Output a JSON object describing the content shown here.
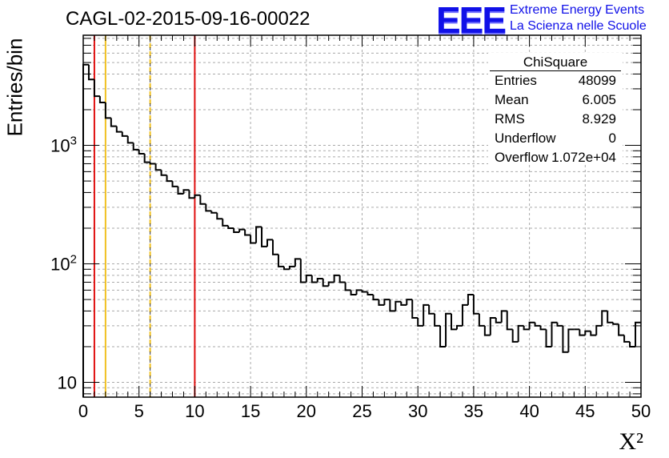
{
  "header": {
    "title": "CAGL-02-2015-09-16-00022",
    "logo": "EEE",
    "logo_line1": "Extreme Energy Events",
    "logo_line2": "La Scienza nelle Scuole"
  },
  "stats": {
    "name": "ChiSquare",
    "rows": [
      {
        "key": "Entries",
        "value": "48099"
      },
      {
        "key": "Mean",
        "value": "6.005"
      },
      {
        "key": "RMS",
        "value": "8.929"
      },
      {
        "key": "Underflow",
        "value": "0"
      },
      {
        "key": "Overflow",
        "value": "1.072e+04"
      }
    ]
  },
  "colors": {
    "histogram": "#000000",
    "red_line": "#e01010",
    "yellow_line": "#f0c020",
    "logo": "#1010e8"
  },
  "chart_data": {
    "type": "histogram",
    "xlabel": "X²",
    "ylabel": "Entries/bin",
    "xlim": [
      0,
      50
    ],
    "ylim": [
      7.5,
      8500
    ],
    "yscale": "log",
    "grid": true,
    "x_ticks": [
      0,
      5,
      10,
      15,
      20,
      25,
      30,
      35,
      40,
      45,
      50
    ],
    "y_ticks": [
      {
        "value": 10,
        "base": "10",
        "exp": ""
      },
      {
        "value": 100,
        "base": "10",
        "exp": "2"
      },
      {
        "value": 1000,
        "base": "10",
        "exp": "3"
      }
    ],
    "bin_width": 0.5,
    "values": [
      4800,
      3600,
      2600,
      2300,
      1700,
      1450,
      1300,
      1200,
      1050,
      920,
      850,
      720,
      700,
      620,
      560,
      500,
      450,
      390,
      420,
      360,
      380,
      320,
      280,
      270,
      240,
      210,
      200,
      185,
      195,
      175,
      150,
      205,
      140,
      160,
      120,
      95,
      90,
      95,
      110,
      70,
      80,
      70,
      75,
      65,
      70,
      80,
      70,
      60,
      55,
      60,
      58,
      55,
      50,
      45,
      50,
      40,
      48,
      45,
      50,
      35,
      30,
      45,
      38,
      30,
      20,
      38,
      28,
      30,
      45,
      55,
      38,
      30,
      25,
      35,
      32,
      40,
      28,
      22,
      30,
      28,
      32,
      30,
      28,
      20,
      32,
      30,
      18,
      28,
      28,
      25,
      27,
      25,
      30,
      40,
      32,
      31,
      25,
      22,
      20,
      32
    ],
    "vertical_lines": [
      {
        "x": 1,
        "color": "red",
        "style": "solid"
      },
      {
        "x": 2,
        "color": "yellow",
        "style": "solid"
      },
      {
        "x": 6,
        "color": "yellow",
        "style": "dashed"
      },
      {
        "x": 10,
        "color": "red",
        "style": "solid"
      }
    ]
  }
}
